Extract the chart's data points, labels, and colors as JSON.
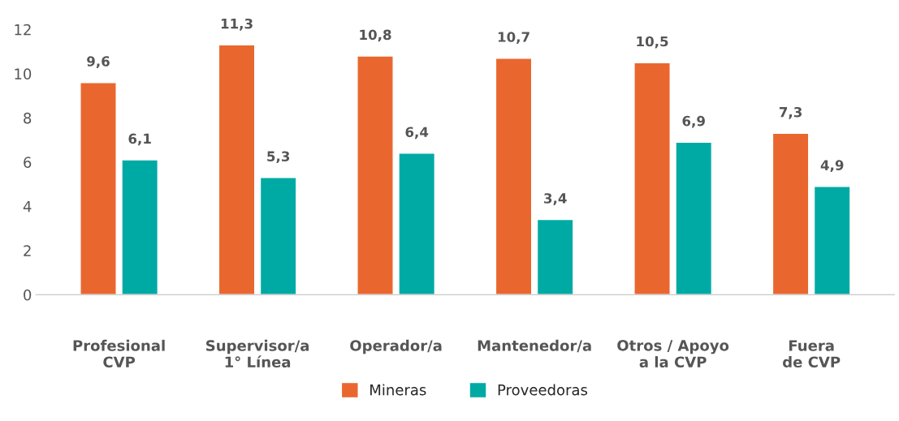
{
  "chart_data": {
    "type": "bar",
    "categories": [
      "Profesional\nCVP",
      "Supervisor/a\n1° Línea",
      "Operador/a",
      "Mantenedor/a",
      "Otros / Apoyo\na la CVP",
      "Fuera\nde CVP"
    ],
    "series": [
      {
        "name": "Mineras",
        "color": "#e9672f",
        "values": [
          9.6,
          11.3,
          10.8,
          10.7,
          10.5,
          7.3
        ],
        "value_labels": [
          "9,6",
          "11,3",
          "10,8",
          "10,7",
          "10,5",
          "7,3"
        ]
      },
      {
        "name": "Proveedoras",
        "color": "#00aaa4",
        "values": [
          6.1,
          5.3,
          6.4,
          3.4,
          6.9,
          4.9
        ],
        "value_labels": [
          "6,1",
          "5,3",
          "6,4",
          "3,4",
          "6,9",
          "4,9"
        ]
      }
    ],
    "ylim": [
      0,
      12
    ],
    "yticks": [
      0,
      2,
      4,
      6,
      8,
      10,
      12
    ],
    "grid": false,
    "legend": "bottom"
  }
}
